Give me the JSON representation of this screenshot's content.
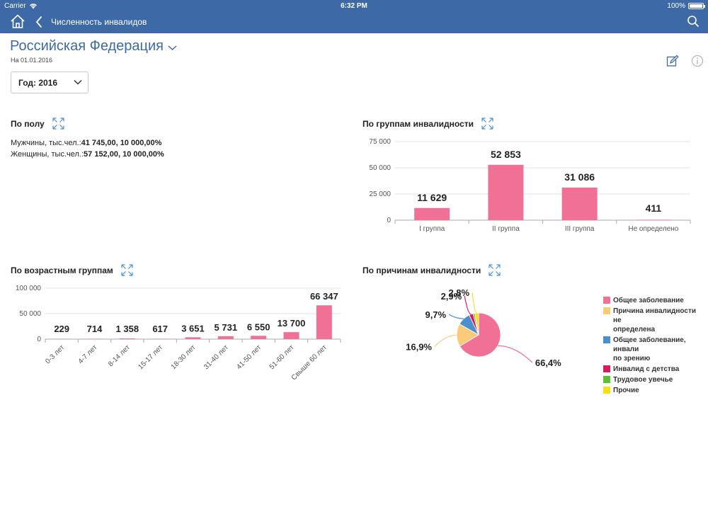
{
  "status": {
    "carrier": "Carrier",
    "time": "6:32 PM",
    "battery": "100%"
  },
  "nav": {
    "title": "Численность инвалидов"
  },
  "header": {
    "region": "Российская Федерация",
    "as_of": "На 01.01.2016"
  },
  "filter": {
    "year_label": "Год: 2016"
  },
  "gender": {
    "title": "По полу",
    "rows": [
      {
        "label": "Мужчины, тыс.чел.:",
        "value": "41 745,00, 10 000,00%"
      },
      {
        "label": "Женщины, тыс.чел.:",
        "value": "57 152,00, 10 000,00%"
      }
    ]
  },
  "groups": {
    "title": "По группам инвалидности"
  },
  "ages": {
    "title": "По возрастным группам"
  },
  "causes": {
    "title": "По причинам инвалидности"
  },
  "colors": {
    "accent": "#3d6aa6",
    "bar": "#f07096"
  },
  "chart_data": [
    {
      "id": "groups",
      "type": "bar",
      "categories": [
        "I группа",
        "II группа",
        "III группа",
        "Не определено"
      ],
      "values": [
        11629,
        52853,
        31086,
        411
      ],
      "value_labels": [
        "11 629",
        "52 853",
        "31 086",
        "411"
      ],
      "yticks": [
        "0",
        "25 000",
        "50 000",
        "75 000"
      ],
      "ylim": [
        0,
        75000
      ],
      "grid": true
    },
    {
      "id": "ages",
      "type": "bar",
      "categories": [
        "0-3 лет",
        "4-7 лет",
        "8-14 лет",
        "15-17 лет",
        "18-30 лет",
        "31-40 лет",
        "41-50 лет",
        "51-60 лет",
        "Свыше 60 лет"
      ],
      "values": [
        229,
        714,
        1358,
        617,
        3651,
        5731,
        6550,
        13700,
        66347
      ],
      "value_labels": [
        "229",
        "714",
        "1 358",
        "617",
        "3 651",
        "5 731",
        "6 550",
        "13 700",
        "66 347"
      ],
      "yticks": [
        "0",
        "50 000",
        "100 000"
      ],
      "ylim": [
        0,
        100000
      ],
      "grid": true
    },
    {
      "id": "causes",
      "type": "pie",
      "slices": [
        {
          "name": "Общее заболевание",
          "value": 66.4,
          "label": "66,4%",
          "color": "#f07096"
        },
        {
          "name": "Причина инвалидности не определена",
          "value": 16.9,
          "label": "16,9%",
          "color": "#fccb7a"
        },
        {
          "name": "Общее заболевание, инвалидность по зрению",
          "value": 9.7,
          "label": "9,7%",
          "color": "#4a90d0"
        },
        {
          "name": "Инвалид с детства",
          "value": 2.9,
          "label": "2,9%",
          "color": "#d81b5e"
        },
        {
          "name": "Трудовое увечье",
          "value": 1.3,
          "label": "",
          "color": "#5bc236"
        },
        {
          "name": "Прочие",
          "value": 2.8,
          "label": "2,8%",
          "color": "#f7e017"
        }
      ],
      "legend_lines": [
        [
          "Общее заболевание"
        ],
        [
          "Причина инвалидности не",
          "определена"
        ],
        [
          "Общее заболевание, инвали",
          "по зрению"
        ],
        [
          "Инвалид с детства"
        ],
        [
          "Трудовое увечье"
        ],
        [
          "Прочие"
        ]
      ],
      "legend_position": "right"
    }
  ]
}
